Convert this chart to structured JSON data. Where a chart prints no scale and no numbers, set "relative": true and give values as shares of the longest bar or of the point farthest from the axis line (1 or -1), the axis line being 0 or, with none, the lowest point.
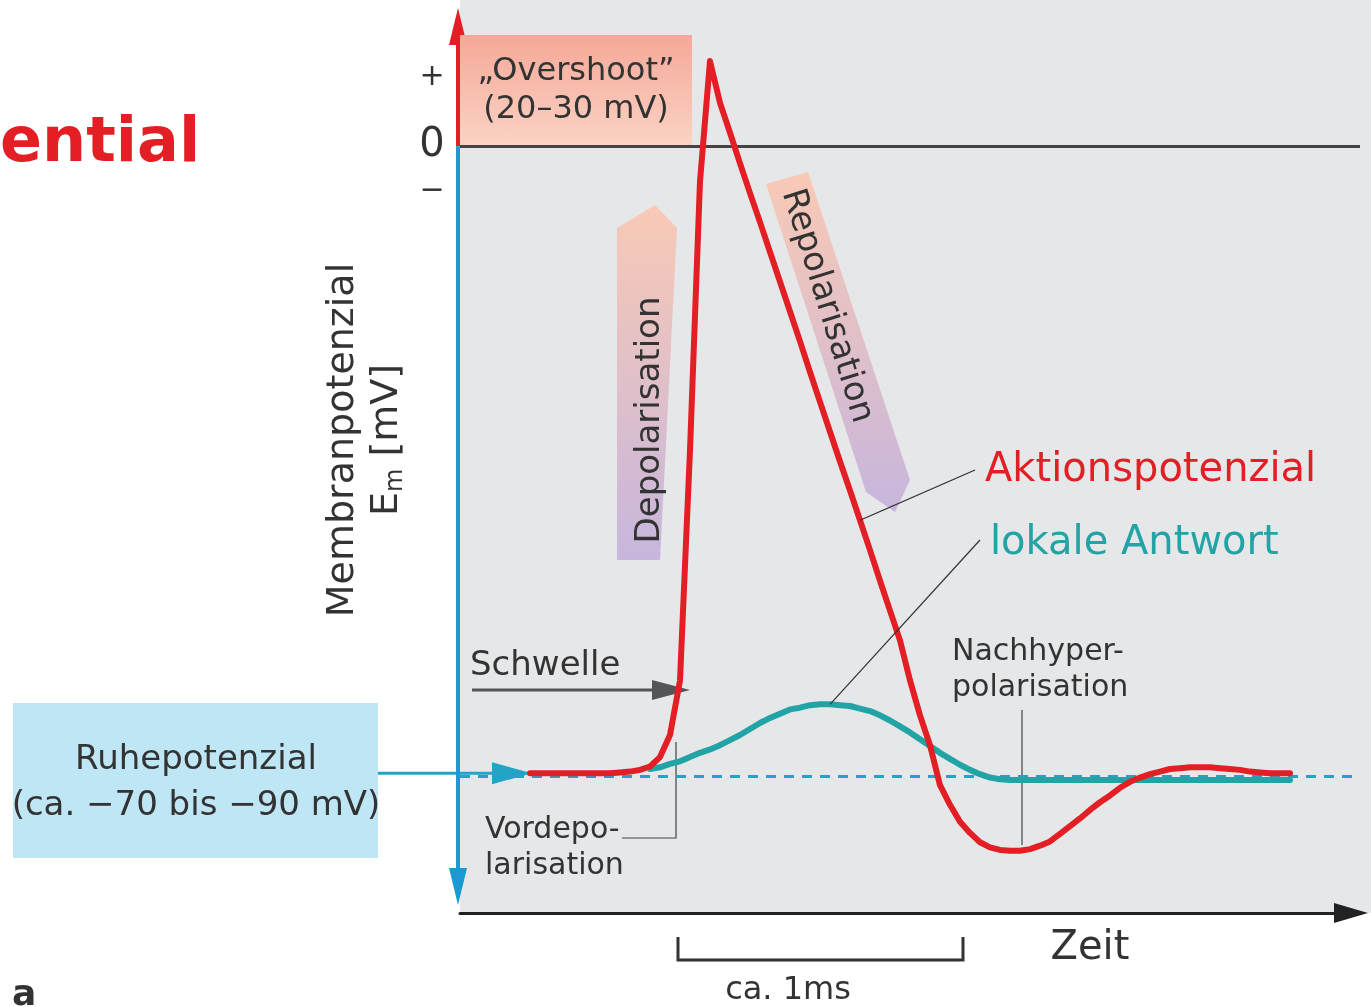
{
  "chart_data": {
    "type": "line",
    "relative": true,
    "title": "ential",
    "xlabel": "Zeit",
    "ylabel": "Membranpotenzial\nE$_{m}$ [mV]",
    "categories": [
      null,
      null,
      null,
      null,
      null,
      null,
      null,
      null,
      null,
      null,
      null,
      null,
      null,
      null,
      null,
      null,
      null,
      null,
      null,
      null,
      null,
      null,
      null,
      null,
      null,
      null,
      null,
      null,
      null,
      null,
      null,
      null,
      null,
      null,
      null,
      null,
      null,
      null,
      null,
      null,
      null,
      null,
      null,
      null,
      null,
      null,
      null,
      null,
      null,
      null,
      null,
      null,
      null,
      null,
      null,
      null,
      null,
      null,
      null,
      null,
      null,
      null,
      null,
      null,
      null,
      null,
      null,
      null,
      null,
      null,
      null,
      null,
      null,
      null,
      null,
      null,
      null,
      null,
      null,
      null,
      null,
      null,
      null,
      null,
      null,
      null,
      null,
      null,
      null,
      null,
      null
    ],
    "series": [
      {
        "name": "Aktionspotenzial",
        "color": "#e31e24",
        "values": [
          null,
          null,
          null,
          null,
          null,
          null,
          null,
          0.164,
          0.164,
          0.164,
          0.164,
          0.164,
          0.164,
          0.164,
          0.164,
          0.164,
          0.165,
          0.166,
          0.168,
          0.172,
          0.183,
          0.209,
          0.273,
          0.543,
          0.859,
          1,
          0.951,
          0.916,
          0.88,
          0.845,
          0.811,
          0.776,
          0.741,
          0.706,
          0.671,
          0.635,
          0.6,
          0.565,
          0.53,
          0.496,
          0.461,
          0.426,
          0.39,
          0.355,
          0.32,
          0.273,
          0.232,
          0.197,
          0.15,
          0.127,
          0.107,
          0.094,
          0.083,
          0.077,
          0.074,
          0.073,
          0.073,
          0.075,
          0.079,
          0.084,
          0.093,
          0.102,
          0.111,
          0.121,
          0.13,
          0.138,
          0.147,
          0.154,
          0.159,
          0.163,
          0.166,
          0.169,
          0.17,
          0.171,
          0.171,
          0.171,
          0.17,
          0.169,
          0.168,
          0.166,
          0.165,
          0.164,
          0.164,
          0.164,
          null,
          null,
          null,
          null,
          null,
          null,
          null
        ]
      },
      {
        "name": "lokale Antwort",
        "color": "#22a4a6",
        "values": [
          null,
          null,
          null,
          null,
          null,
          null,
          null,
          null,
          null,
          null,
          null,
          null,
          null,
          null,
          null,
          null,
          null,
          null,
          null,
          0.169,
          0.171,
          0.175,
          0.178,
          0.183,
          0.188,
          0.192,
          0.197,
          0.203,
          0.209,
          0.216,
          0.223,
          0.229,
          0.234,
          0.239,
          0.241,
          0.244,
          0.245,
          0.245,
          0.244,
          0.243,
          0.24,
          0.237,
          0.232,
          0.226,
          0.219,
          0.212,
          0.204,
          0.196,
          0.188,
          0.181,
          0.174,
          0.168,
          0.163,
          0.159,
          0.157,
          0.156,
          0.156,
          0.156,
          0.156,
          0.156,
          0.156,
          0.156,
          0.156,
          0.156,
          0.156,
          0.156,
          0.156,
          0.156,
          0.156,
          0.156,
          0.156,
          0.156,
          0.156,
          0.156,
          0.156,
          0.156,
          0.156,
          0.156,
          0.156,
          0.156,
          0.156,
          0.156,
          0.156,
          0.156,
          null,
          null,
          null,
          null,
          null,
          null,
          null
        ]
      }
    ],
    "ref_lines": [
      {
        "axis": "y",
        "value": 0.164,
        "label": "Ruhepotenzial\n(ca. −70 bis −90 mV)",
        "color": "#22a4c6",
        "line_style": "dashed"
      },
      {
        "axis": "y",
        "value": 0.9,
        "color": "#444444",
        "line_style": "solid"
      }
    ],
    "annotations": [
      "„Overshoot”\n(20–30 mV)",
      "Depolarisation",
      "Repolarisation",
      "Schwelle",
      "Vordepo-\nlarisation",
      "Nachhyper-\npolarisation",
      "ca. 1ms",
      "a",
      "+",
      "−",
      "0"
    ],
    "legend": false,
    "line_style": "solid",
    "marker": "none"
  }
}
